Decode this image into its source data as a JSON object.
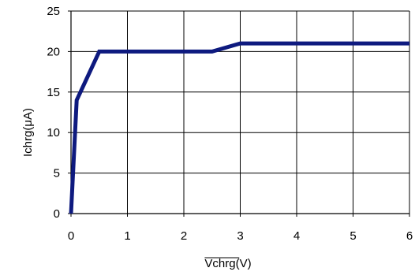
{
  "chart_data": {
    "type": "line",
    "xlabel": "Vchrg(V)",
    "xlabel_overline": true,
    "ylabel": "Ichrg(μA)",
    "xlim": [
      0,
      6
    ],
    "ylim": [
      0,
      25
    ],
    "xticks": [
      0,
      1,
      2,
      3,
      4,
      5,
      6
    ],
    "yticks": [
      0,
      5,
      10,
      15,
      20,
      25
    ],
    "xtick_labels": [
      "0",
      "1",
      "2",
      "3",
      "4",
      "5",
      "6"
    ],
    "ytick_labels": [
      "0",
      "5",
      "10",
      "15",
      "20",
      "25"
    ],
    "grid": true,
    "series": [
      {
        "color": "#0e1a7f",
        "x": [
          0,
          0.1,
          0.5,
          2.5,
          3.0,
          6.0
        ],
        "y": [
          0,
          14,
          20,
          20,
          21,
          21
        ]
      }
    ]
  }
}
